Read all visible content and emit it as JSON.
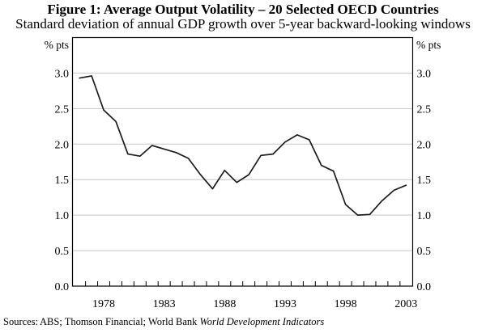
{
  "title": "Figure 1: Average Output Volatility – 20 Selected OECD Countries",
  "subtitle": "Standard deviation of annual GDP growth over 5-year backward-looking windows",
  "sources": {
    "label": "Sources:",
    "text": "ABS; Thomson Financial; World Bank ",
    "italic": "World Development Indicators"
  },
  "chart_data": {
    "type": "line",
    "title": "Figure 1: Average Output Volatility – 20 Selected OECD Countries",
    "subtitle": "Standard deviation of annual GDP growth over 5-year backward-looking windows",
    "series_name": "Average output volatility, 20 selected OECD countries",
    "unit_left": "% pts",
    "unit_right": "% pts",
    "x": [
      1976,
      1977,
      1978,
      1979,
      1980,
      1981,
      1982,
      1983,
      1984,
      1985,
      1986,
      1987,
      1988,
      1989,
      1990,
      1991,
      1992,
      1993,
      1994,
      1995,
      1996,
      1997,
      1998,
      1999,
      2000,
      2001,
      2002,
      2003
    ],
    "values": [
      2.93,
      2.96,
      2.48,
      2.32,
      1.86,
      1.83,
      1.98,
      1.93,
      1.88,
      1.8,
      1.57,
      1.37,
      1.63,
      1.46,
      1.57,
      1.84,
      1.86,
      2.03,
      2.13,
      2.06,
      1.7,
      1.62,
      1.15,
      1.0,
      1.01,
      1.2,
      1.35,
      1.42
    ],
    "ylim": [
      0.0,
      3.5
    ],
    "xlim": [
      1975.42,
      2003.55
    ],
    "yticks": [
      0.0,
      0.5,
      1.0,
      1.5,
      2.0,
      2.5,
      3.0
    ],
    "ytick_labels": [
      "0.0",
      "0.5",
      "1.0",
      "1.5",
      "2.0",
      "2.5",
      "3.0"
    ],
    "xticks": [
      1978,
      1983,
      1988,
      1993,
      1998,
      2003
    ],
    "xtick_labels": [
      "1978",
      "1983",
      "1988",
      "1993",
      "1998",
      "2003"
    ],
    "grid": "horizontal",
    "legend": "none",
    "colors": {
      "line": "#1b1b1b",
      "grid": "#c5c5c5",
      "axis": "#000000",
      "text": "#000000",
      "background": "#ffffff"
    }
  }
}
